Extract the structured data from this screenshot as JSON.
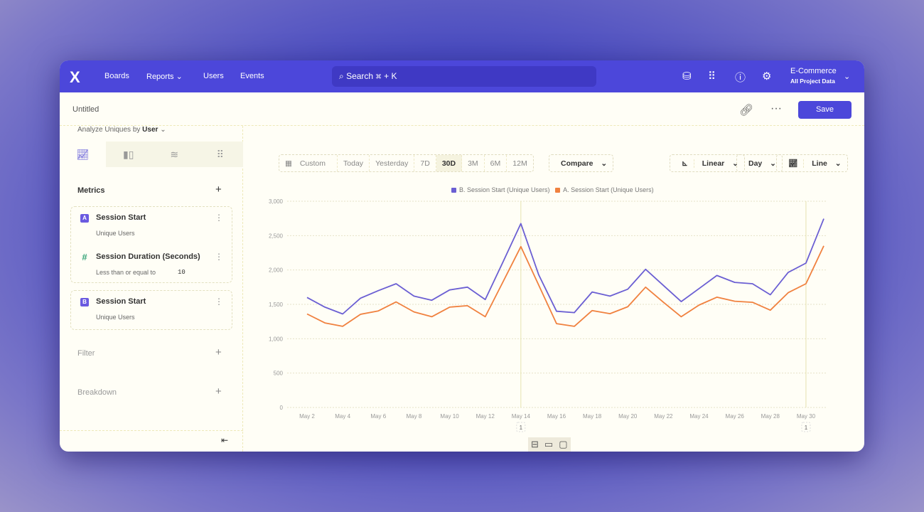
{
  "nav": {
    "logo": "X",
    "items": [
      "Boards",
      "Reports",
      "Users",
      "Events"
    ],
    "search_placeholder": "Search ⌘ + K",
    "project": "E-Commerce",
    "project_sub": "All Project Data",
    "icons": [
      "database-icon",
      "apps-grid-icon",
      "help-icon",
      "settings-icon"
    ]
  },
  "toolbar": {
    "title": "Untitled",
    "save_label": "Save"
  },
  "sidebar": {
    "analyze_label": "Analyze Uniques by",
    "analyze_value": "User",
    "metrics_label": "Metrics",
    "filter_label": "Filter",
    "breakdown_label": "Breakdown",
    "metrics": [
      {
        "badge": "A",
        "name": "Session Start",
        "sub": "Unique Users"
      },
      {
        "badge": "#",
        "name": "Session Duration (Seconds)",
        "sub": "Less than or equal to",
        "value": "10"
      },
      {
        "badge": "B",
        "name": "Session Start",
        "sub": "Unique Users"
      }
    ]
  },
  "date_range": {
    "custom": "Custom",
    "options": [
      "Today",
      "Yesterday",
      "7D",
      "30D",
      "3M",
      "6M",
      "12M"
    ],
    "selected": "30D",
    "compare": "Compare"
  },
  "chart_controls": {
    "scale": "Linear",
    "interval": "Day",
    "type": "Line"
  },
  "colors": {
    "accent": "#4c47da",
    "series_b": "#6b5fd3",
    "series_a": "#f0813f"
  },
  "chart_data": {
    "type": "line",
    "grid": true,
    "legend_placement": "top-center",
    "ylim": [
      0,
      3000
    ],
    "yticks": [
      "0",
      "500",
      "1,000",
      "1,500",
      "2,000",
      "2,500",
      "3,000"
    ],
    "x": [
      "May 2",
      "May 3",
      "May 4",
      "May 5",
      "May 6",
      "May 7",
      "May 8",
      "May 9",
      "May 10",
      "May 11",
      "May 12",
      "May 13",
      "May 14",
      "May 15",
      "May 16",
      "May 17",
      "May 18",
      "May 19",
      "May 20",
      "May 21",
      "May 22",
      "May 23",
      "May 24",
      "May 25",
      "May 26",
      "May 27",
      "May 28",
      "May 29",
      "May 30",
      "May 31"
    ],
    "xtick_labels": [
      "May 2",
      "May 4",
      "May 6",
      "May 8",
      "May 10",
      "May 12",
      "May 14",
      "May 16",
      "May 18",
      "May 20",
      "May 22",
      "May 24",
      "May 26",
      "May 28",
      "May 30"
    ],
    "series": [
      {
        "name": "B. Session Start (Unique Users)",
        "color": "#6b5fd3",
        "values": [
          1600,
          1460,
          1360,
          1590,
          1700,
          1800,
          1620,
          1560,
          1710,
          1750,
          1570,
          2120,
          2675,
          1930,
          1400,
          1380,
          1680,
          1620,
          1720,
          2010,
          1775,
          1540,
          1730,
          1920,
          1820,
          1800,
          1640,
          1965,
          2100,
          2745
        ]
      },
      {
        "name": "A. Session Start (Unique Users)",
        "color": "#f0813f",
        "values": [
          1360,
          1230,
          1180,
          1355,
          1405,
          1535,
          1390,
          1320,
          1460,
          1480,
          1320,
          1830,
          2340,
          1780,
          1220,
          1180,
          1410,
          1365,
          1465,
          1750,
          1530,
          1320,
          1490,
          1605,
          1545,
          1530,
          1415,
          1670,
          1800,
          2350
        ]
      }
    ],
    "annotations": [
      {
        "x": "May 14",
        "label": "1"
      },
      {
        "x": "May 30",
        "label": "1"
      }
    ]
  }
}
